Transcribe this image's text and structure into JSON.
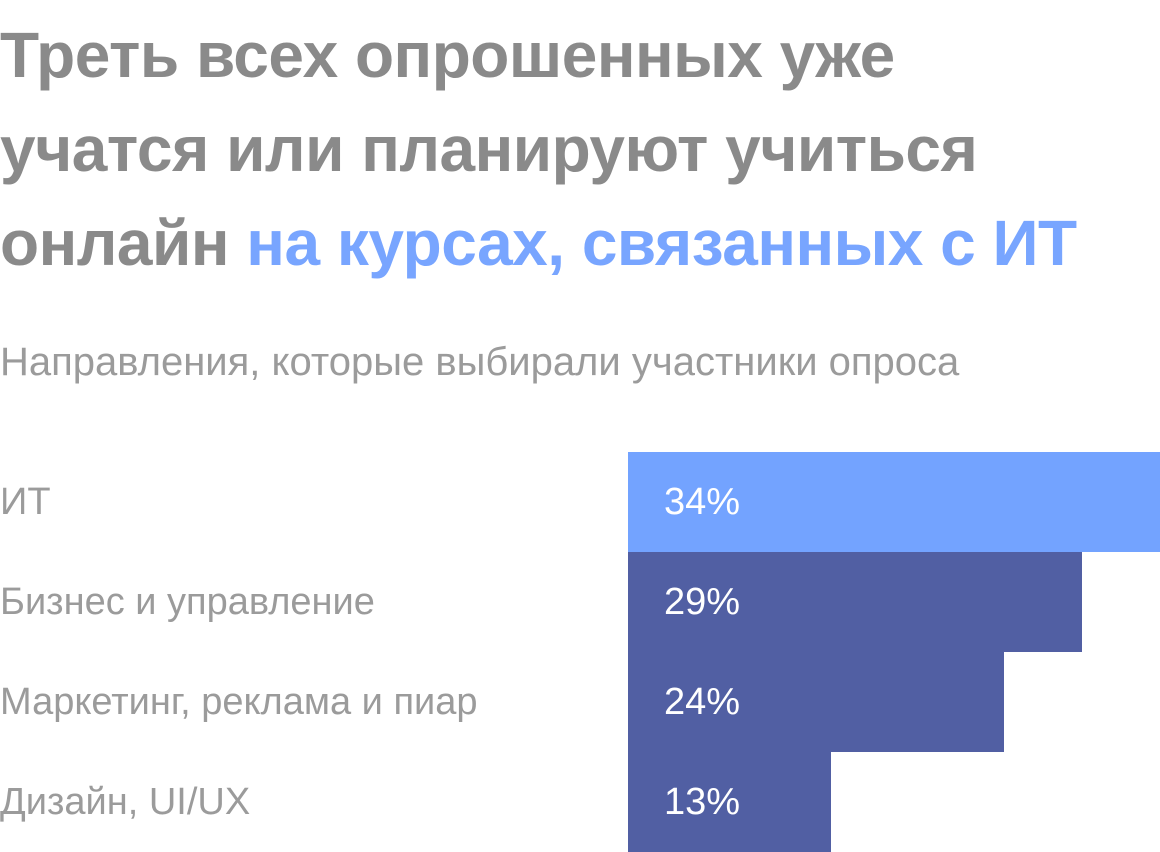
{
  "headline": {
    "line1": "Треть всех опрошенных уже",
    "line2": "учатся или планируют учиться",
    "line3_plain": "онлайн ",
    "line3_accent": "на курсах, связанных с ИТ"
  },
  "subtitle": "Направления, которые выбирали участники опроса",
  "colors": {
    "headline": "#8a8a8a",
    "accent": "#78a5ff",
    "bar_highlight": "#73a3ff",
    "bar_default": "#515fa3",
    "label": "#9b9b9b"
  },
  "chart_data": {
    "type": "bar",
    "orientation": "horizontal",
    "categories": [
      "ИТ",
      "Бизнес и управление",
      "Маркетинг, реклама и пиар",
      "Дизайн, UI/UX"
    ],
    "values": [
      34,
      29,
      24,
      13
    ],
    "value_labels": [
      "34%",
      "29%",
      "24%",
      "13%"
    ],
    "highlight_index": 0,
    "xlim": [
      0,
      34
    ],
    "grid": false,
    "legend": "none"
  }
}
